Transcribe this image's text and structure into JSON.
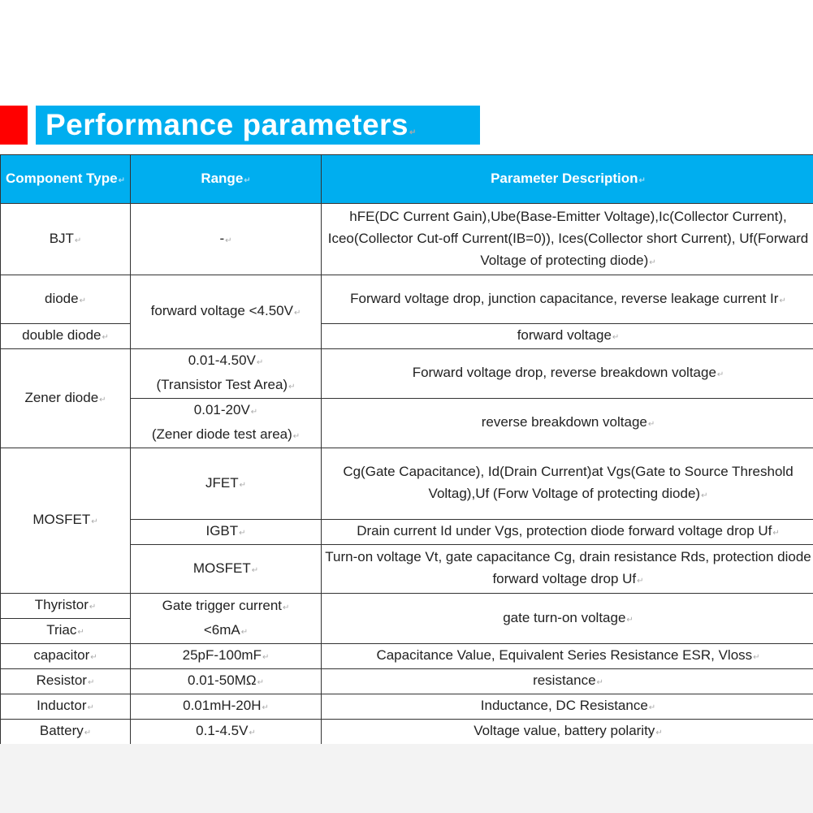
{
  "title": "Performance parameters",
  "colors": {
    "accent_blue": "#00aeef",
    "red_marker": "#ff0000"
  },
  "headers": {
    "component": "Component Type",
    "range": "Range",
    "description": "Parameter Description"
  },
  "rows": {
    "bjt": {
      "component": "BJT",
      "range": "-",
      "description": "hFE(DC Current Gain),Ube(Base-Emitter Voltage),Ic(Collector Current), Iceo(Collector Cut-off Current(IB=0)), Ices(Collector short Current), Uf(Forward Voltage of protecting diode)"
    },
    "diode": {
      "component": "diode",
      "range": "forward voltage <4.50V",
      "description": "Forward voltage drop, junction capacitance, reverse leakage current Ir"
    },
    "double_diode": {
      "component": "double diode",
      "description": "forward voltage"
    },
    "zener": {
      "component": "Zener diode",
      "range1a": "0.01-4.50V",
      "range1b": "(Transistor Test Area)",
      "description1": "Forward voltage drop, reverse breakdown voltage",
      "range2a": "0.01-20V",
      "range2b": "(Zener diode test area)",
      "description2": "reverse breakdown voltage"
    },
    "mosfet": {
      "component": "MOSFET",
      "jfet": "JFET",
      "jfet_description": "Cg(Gate Capacitance), Id(Drain Current)at Vgs(Gate to Source Threshold Voltag),Uf (Forw Voltage of protecting diode)",
      "igbt": "IGBT",
      "igbt_description": "Drain current Id under Vgs, protection diode forward voltage drop Uf",
      "mosfet": "MOSFET",
      "mosfet_description": "Turn-on voltage Vt, gate capacitance Cg, drain resistance Rds, protection diode forward voltage drop Uf"
    },
    "thyristor": {
      "component": "Thyristor",
      "component2": "Triac",
      "range_a": "Gate trigger current",
      "range_b": "<6mA",
      "description": "gate turn-on voltage"
    },
    "capacitor": {
      "component": "capacitor",
      "range": "25pF-100mF",
      "description": "Capacitance Value, Equivalent Series Resistance ESR, Vloss"
    },
    "resistor": {
      "component": "Resistor",
      "range": "0.01-50MΩ",
      "description": "resistance"
    },
    "inductor": {
      "component": "Inductor",
      "range": "0.01mH-20H",
      "description": "Inductance, DC Resistance"
    },
    "battery": {
      "component": "Battery",
      "range": "0.1-4.5V",
      "description": "Voltage value, battery polarity"
    }
  }
}
